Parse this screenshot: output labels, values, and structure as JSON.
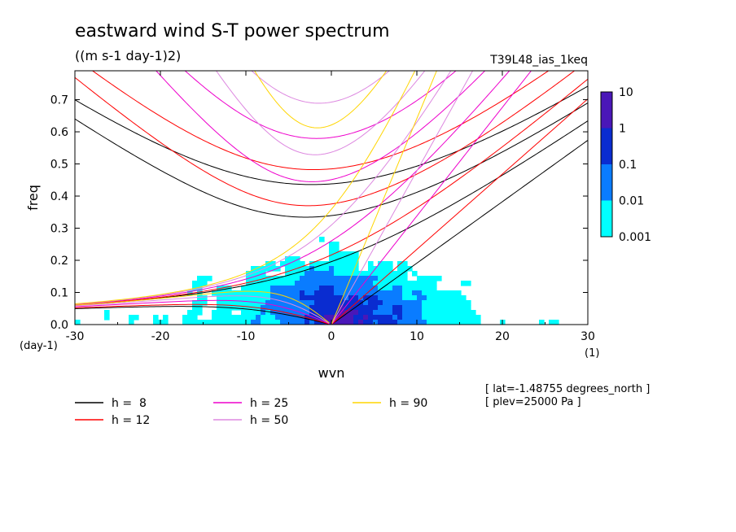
{
  "chart_data": {
    "type": "heatmap",
    "title": "eastward wind S-T power spectrum",
    "subtitle": "((m s-1 day-1)2)",
    "run_label": "T39L48_ias_1keq",
    "xlabel": "wvn",
    "ylabel": "freq",
    "x_unit_label": "(1)",
    "y_unit_label": "(day-1)",
    "xlim": [
      -30,
      30
    ],
    "ylim": [
      0,
      0.79
    ],
    "x_ticks": [
      -30,
      -20,
      -10,
      0,
      10,
      20,
      30
    ],
    "x_tick_labels": [
      "-30",
      "-20",
      "-10",
      "0",
      "10",
      "20",
      "30"
    ],
    "y_ticks": [
      0,
      0.1,
      0.2,
      0.3,
      0.4,
      0.5,
      0.6,
      0.7
    ],
    "y_tick_labels": [
      "0.0",
      "0.1",
      "0.2",
      "0.3",
      "0.4",
      "0.5",
      "0.6",
      "0.7"
    ],
    "colorbar": {
      "levels": [
        0.001,
        0.01,
        0.1,
        1,
        10
      ],
      "level_labels": [
        "0.001",
        "0.01",
        "0.1",
        "1",
        "10"
      ],
      "colors": [
        "#00ffff",
        "#0a7cff",
        "#0a2cd0",
        "#4a17b8"
      ]
    },
    "dispersion_curves": [
      {
        "label": "h =  8",
        "h": 8,
        "color": "#000000"
      },
      {
        "label": "h = 12",
        "h": 12,
        "color": "#ff0000"
      },
      {
        "label": "h = 25",
        "h": 25,
        "color": "#ee00cc"
      },
      {
        "label": "h = 50",
        "h": 50,
        "color": "#dd88e0"
      },
      {
        "label": "h = 90",
        "h": 90,
        "color": "#ffd500"
      }
    ],
    "annotations": [
      "[ lat=-1.48755 degrees_north ]",
      "[ plev=25000 Pa ]"
    ]
  }
}
